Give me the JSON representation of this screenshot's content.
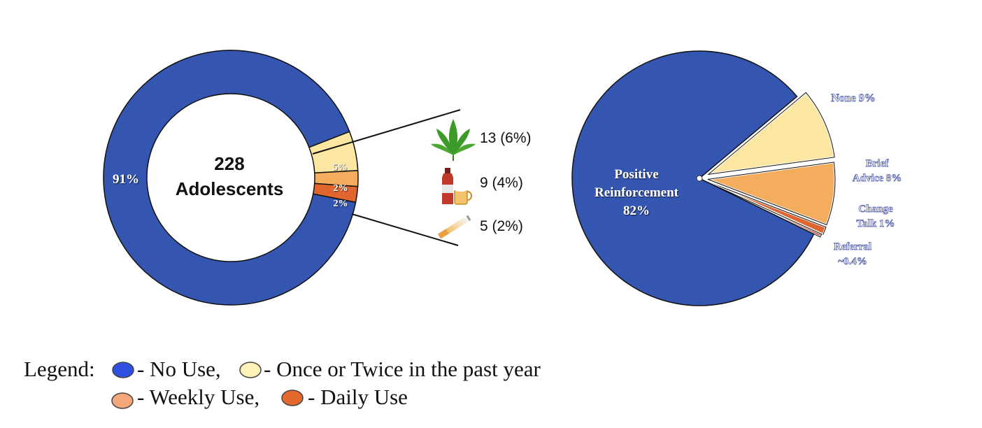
{
  "chart_data": [
    {
      "type": "pie",
      "subtype": "donut",
      "center_label": [
        "228",
        "Adolescents"
      ],
      "slices": [
        {
          "label": "No Use",
          "value": 91,
          "display": "91%",
          "color": "#3556b0"
        },
        {
          "label": "Once or Twice in the past year",
          "value": 5,
          "display": "5%",
          "color": "#fbe7a1"
        },
        {
          "label": "Weekly Use",
          "value": 2,
          "display": "2%",
          "color": "#f3ad5d"
        },
        {
          "label": "Daily Use",
          "value": 2,
          "display": "2%",
          "color": "#e0662f"
        }
      ],
      "breakdown": [
        {
          "icon": "cannabis-leaf-icon",
          "text": "13 (6%)"
        },
        {
          "icon": "alcohol-bottle-icon",
          "text": "9 (4%)"
        },
        {
          "icon": "cigarette-icon",
          "text": "5 (2%)"
        }
      ]
    },
    {
      "type": "pie",
      "subtype": "exploded",
      "slices": [
        {
          "label": "Positive Reinforcement",
          "value": 82,
          "display": "82%",
          "color": "#3556b0"
        },
        {
          "label": "None",
          "value": 9,
          "display": "9%",
          "color": "#fbe7a1"
        },
        {
          "label": "Brief Advice",
          "value": 8,
          "display": "8%",
          "color": "#f3ad5d"
        },
        {
          "label": "Change Talk",
          "value": 1,
          "display": "1%",
          "color": "#e0662f"
        },
        {
          "label": "Referral",
          "value": 0.4,
          "display": "~0.4%",
          "color": "#c0392b"
        }
      ]
    }
  ],
  "donut_labels": {
    "no_use": "91%",
    "once": "5%",
    "weekly": "2%",
    "daily": "2%",
    "center_line1": "228",
    "center_line2": "Adolescents"
  },
  "pie_labels": {
    "positive_line1": "Positive",
    "positive_line2": "Reinforcement",
    "positive_line3": "82%",
    "none": "None 9%",
    "brief_line1": "Brief",
    "brief_line2": "Advice 8%",
    "change_line1": "Change",
    "change_line2": "Talk 1%",
    "referral_line1": "Referral",
    "referral_line2": "~0.4%"
  },
  "legend": {
    "title": "Legend:",
    "items": [
      {
        "text": "- No Use,",
        "color": "#2f4fe0"
      },
      {
        "text": "- Once or Twice in the past year",
        "color": "#fdf3b8"
      },
      {
        "text": "- Weekly Use,",
        "color": "#f3a77a"
      },
      {
        "text": "- Daily Use",
        "color": "#e4682e"
      }
    ]
  }
}
